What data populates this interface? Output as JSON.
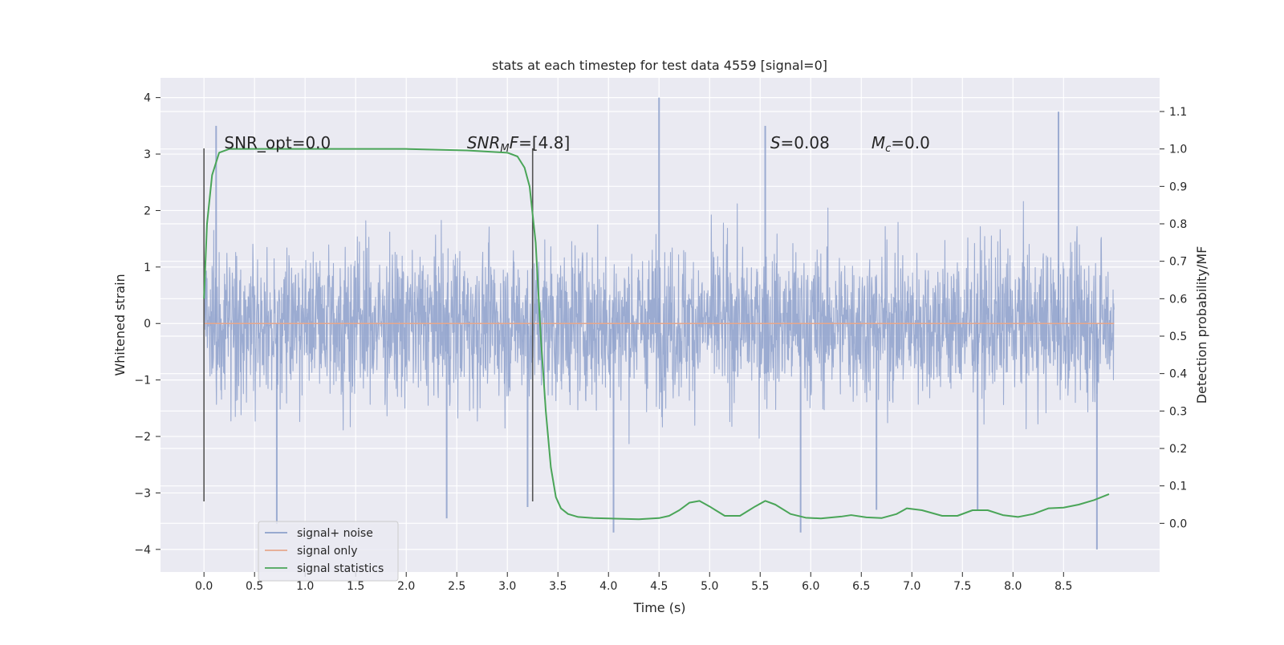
{
  "chart_data": {
    "type": "line",
    "title": "stats at each timestep for test data 4559 [signal=0]",
    "xlabel": "Time (s)",
    "ylabel": "Whitened strain",
    "ylabel_right": "Detection probability/MF",
    "xlim": [
      -0.43,
      9.45
    ],
    "ylim": [
      -4.4,
      4.35
    ],
    "ylim_right": [
      -0.13,
      1.19
    ],
    "x_ticks": [
      "0.0",
      "0.5",
      "1.0",
      "1.5",
      "2.0",
      "2.5",
      "3.0",
      "3.5",
      "4.0",
      "4.5",
      "5.0",
      "5.5",
      "6.0",
      "6.5",
      "7.0",
      "7.5",
      "8.0",
      "8.5"
    ],
    "y_ticks": [
      "−4",
      "−3",
      "−2",
      "−1",
      "0",
      "1",
      "2",
      "3",
      "4"
    ],
    "y_ticks_right": [
      "0.0",
      "0.1",
      "0.2",
      "0.3",
      "0.4",
      "0.5",
      "0.6",
      "0.7",
      "0.8",
      "0.9",
      "1.0",
      "1.1"
    ],
    "grid": true,
    "legend_placement": "lower-left",
    "series": [
      {
        "name": "signal+ noise",
        "color": "#8da0cb",
        "x_range": [
          0.0,
          9.0
        ],
        "typical_range": [
          -1.3,
          1.3
        ],
        "notable_peaks": [
          {
            "x": 0.12,
            "y": 3.5
          },
          {
            "x": 0.72,
            "y": -3.55
          },
          {
            "x": 2.4,
            "y": -3.45
          },
          {
            "x": 3.2,
            "y": -3.25
          },
          {
            "x": 4.05,
            "y": -3.7
          },
          {
            "x": 4.5,
            "y": 4.0
          },
          {
            "x": 5.55,
            "y": 3.5
          },
          {
            "x": 5.9,
            "y": -3.7
          },
          {
            "x": 6.65,
            "y": -3.3
          },
          {
            "x": 7.65,
            "y": -3.3
          },
          {
            "x": 8.45,
            "y": 3.75
          },
          {
            "x": 8.83,
            "y": -4.0
          }
        ]
      },
      {
        "name": "signal only",
        "color": "#e6a78c",
        "x": [
          0.0,
          9.0
        ],
        "y": [
          0.0,
          0.0
        ]
      },
      {
        "name": "signal statistics",
        "color": "#4aa558",
        "axis": "right",
        "x": [
          0.0,
          0.03,
          0.08,
          0.15,
          0.25,
          0.4,
          1.0,
          2.0,
          2.6,
          3.0,
          3.1,
          3.17,
          3.22,
          3.28,
          3.33,
          3.38,
          3.43,
          3.48,
          3.53,
          3.6,
          3.7,
          3.85,
          4.0,
          4.3,
          4.5,
          4.6,
          4.7,
          4.8,
          4.9,
          5.0,
          5.15,
          5.3,
          5.45,
          5.55,
          5.65,
          5.8,
          5.95,
          6.1,
          6.3,
          6.4,
          6.55,
          6.7,
          6.85,
          6.95,
          7.1,
          7.3,
          7.45,
          7.6,
          7.75,
          7.9,
          8.05,
          8.2,
          8.35,
          8.5,
          8.65,
          8.8,
          8.95
        ],
        "y": [
          0.6,
          0.8,
          0.93,
          0.99,
          1.0,
          1.0,
          1.0,
          1.0,
          0.996,
          0.99,
          0.98,
          0.95,
          0.9,
          0.75,
          0.5,
          0.3,
          0.15,
          0.07,
          0.04,
          0.025,
          0.017,
          0.014,
          0.013,
          0.011,
          0.014,
          0.02,
          0.035,
          0.055,
          0.06,
          0.045,
          0.02,
          0.02,
          0.045,
          0.06,
          0.05,
          0.025,
          0.015,
          0.013,
          0.018,
          0.022,
          0.016,
          0.014,
          0.025,
          0.04,
          0.035,
          0.02,
          0.02,
          0.035,
          0.035,
          0.022,
          0.017,
          0.025,
          0.04,
          0.042,
          0.05,
          0.062,
          0.078
        ]
      }
    ],
    "vertical_markers": [
      {
        "x": 0.0,
        "y": [
          -3.15,
          3.1
        ]
      },
      {
        "x": 3.25,
        "y": [
          -3.15,
          3.1
        ]
      }
    ],
    "annotations": [
      {
        "parts": [
          {
            "t": "SNR_opt=0.0",
            "i": false
          }
        ],
        "x": 0.2,
        "y": 3.1
      },
      {
        "parts": [
          {
            "t": "SNR",
            "i": true
          },
          {
            "t": "M",
            "i": true,
            "sub": true
          },
          {
            "t": "F",
            "i": true
          },
          {
            "t": "=[4.8]",
            "i": false
          }
        ],
        "x": 2.6,
        "y": 3.1
      },
      {
        "parts": [
          {
            "t": "S",
            "i": true
          },
          {
            "t": "=0.08",
            "i": false
          }
        ],
        "x": 5.6,
        "y": 3.1
      },
      {
        "parts": [
          {
            "t": "M",
            "i": true
          },
          {
            "t": "c",
            "i": true,
            "sub": true
          },
          {
            "t": "=0.0",
            "i": false
          }
        ],
        "x": 6.6,
        "y": 3.1
      }
    ],
    "colors": {
      "plot_background": "#eaeaf2",
      "grid": "#ffffff",
      "marker_line": "#555555",
      "text": "#262626"
    }
  }
}
